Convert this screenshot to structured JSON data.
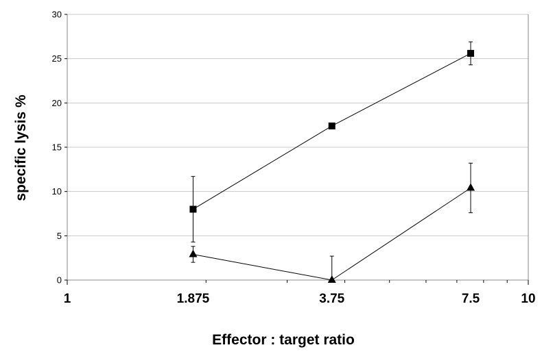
{
  "chart_data": {
    "type": "scatter",
    "title": "",
    "xlabel": "Effector : target ratio",
    "ylabel": "specific lysis %",
    "x_scale": "log",
    "xlim": [
      1,
      10
    ],
    "ylim": [
      0,
      30
    ],
    "x_ticks": [
      "1",
      "1.875",
      "3.75",
      "7.5",
      "10"
    ],
    "x_tick_values": [
      1,
      1.875,
      3.75,
      7.5,
      10
    ],
    "y_ticks": [
      "0",
      "5",
      "10",
      "15",
      "20",
      "25",
      "30"
    ],
    "y_tick_values": [
      0,
      5,
      10,
      15,
      20,
      25,
      30
    ],
    "grid": "horizontal",
    "legend": "none",
    "series": [
      {
        "marker": "square",
        "color": "#000000",
        "x": [
          1.875,
          3.75,
          7.5
        ],
        "y": [
          8.0,
          17.4,
          25.6
        ],
        "error": [
          3.7,
          0,
          1.3
        ]
      },
      {
        "marker": "triangle",
        "color": "#000000",
        "x": [
          1.875,
          3.75,
          7.5
        ],
        "y": [
          2.9,
          0.0,
          10.4
        ],
        "error": [
          0.9,
          2.7,
          2.8
        ]
      }
    ]
  }
}
